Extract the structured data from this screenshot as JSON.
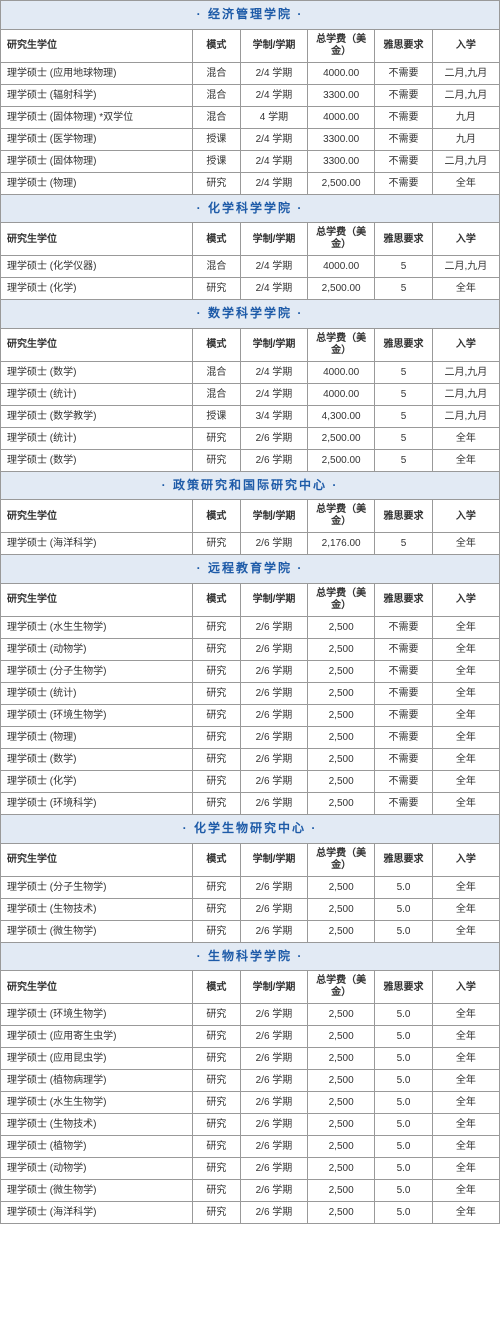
{
  "headers": {
    "degree": "研究生学位",
    "mode": "模式",
    "duration": "学制/学期",
    "fee": "总学费（美金）",
    "ielts": "雅思要求",
    "intake": "入学"
  },
  "sections": [
    {
      "title": "· 经济管理学院 ·",
      "rows": [
        {
          "degree": "理学硕士 (应用地球物理)",
          "mode": "混合",
          "duration": "2/4 学期",
          "fee": "4000.00",
          "ielts": "不需要",
          "intake": "二月,九月"
        },
        {
          "degree": "理学硕士 (辐射科学)",
          "mode": "混合",
          "duration": "2/4 学期",
          "fee": "3300.00",
          "ielts": "不需要",
          "intake": "二月,九月"
        },
        {
          "degree": "理学硕士 (固体物理) *双学位",
          "mode": "混合",
          "duration": "4 学期",
          "fee": "4000.00",
          "ielts": "不需要",
          "intake": "九月"
        },
        {
          "degree": "理学硕士 (医学物理)",
          "mode": "授课",
          "duration": "2/4 学期",
          "fee": "3300.00",
          "ielts": "不需要",
          "intake": "九月"
        },
        {
          "degree": "理学硕士 (固体物理)",
          "mode": "授课",
          "duration": "2/4 学期",
          "fee": "3300.00",
          "ielts": "不需要",
          "intake": "二月,九月"
        },
        {
          "degree": "理学硕士 (物理)",
          "mode": "研究",
          "duration": "2/4 学期",
          "fee": "2,500.00",
          "ielts": "不需要",
          "intake": "全年"
        }
      ]
    },
    {
      "title": "· 化学科学学院 ·",
      "rows": [
        {
          "degree": "理学硕士 (化学仪器)",
          "mode": "混合",
          "duration": "2/4 学期",
          "fee": "4000.00",
          "ielts": "5",
          "intake": "二月,九月"
        },
        {
          "degree": "理学硕士 (化学)",
          "mode": "研究",
          "duration": "2/4 学期",
          "fee": "2,500.00",
          "ielts": "5",
          "intake": "全年"
        }
      ]
    },
    {
      "title": "· 数学科学学院 ·",
      "rows": [
        {
          "degree": "理学硕士 (数学)",
          "mode": "混合",
          "duration": "2/4 学期",
          "fee": "4000.00",
          "ielts": "5",
          "intake": "二月,九月"
        },
        {
          "degree": "理学硕士 (统计)",
          "mode": "混合",
          "duration": "2/4 学期",
          "fee": "4000.00",
          "ielts": "5",
          "intake": "二月,九月"
        },
        {
          "degree": "理学硕士 (数学教学)",
          "mode": "授课",
          "duration": "3/4 学期",
          "fee": "4,300.00",
          "ielts": "5",
          "intake": "二月,九月"
        },
        {
          "degree": "理学硕士 (统计)",
          "mode": "研究",
          "duration": "2/6 学期",
          "fee": "2,500.00",
          "ielts": "5",
          "intake": "全年"
        },
        {
          "degree": "理学硕士 (数学)",
          "mode": "研究",
          "duration": "2/6 学期",
          "fee": "2,500.00",
          "ielts": "5",
          "intake": "全年"
        }
      ]
    },
    {
      "title": "· 政策研究和国际研究中心 ·",
      "rows": [
        {
          "degree": "理学硕士 (海洋科学)",
          "mode": "研究",
          "duration": "2/6 学期",
          "fee": "2,176.00",
          "ielts": "5",
          "intake": "全年"
        }
      ]
    },
    {
      "title": "· 远程教育学院 ·",
      "rows": [
        {
          "degree": "理学硕士 (水生生物学)",
          "mode": "研究",
          "duration": "2/6 学期",
          "fee": "2,500",
          "ielts": "不需要",
          "intake": "全年"
        },
        {
          "degree": "理学硕士 (动物学)",
          "mode": "研究",
          "duration": "2/6 学期",
          "fee": "2,500",
          "ielts": "不需要",
          "intake": "全年"
        },
        {
          "degree": "理学硕士 (分子生物学)",
          "mode": "研究",
          "duration": "2/6 学期",
          "fee": "2,500",
          "ielts": "不需要",
          "intake": "全年"
        },
        {
          "degree": "理学硕士 (统计)",
          "mode": "研究",
          "duration": "2/6 学期",
          "fee": "2,500",
          "ielts": "不需要",
          "intake": "全年"
        },
        {
          "degree": "理学硕士 (环境生物学)",
          "mode": "研究",
          "duration": "2/6 学期",
          "fee": "2,500",
          "ielts": "不需要",
          "intake": "全年"
        },
        {
          "degree": "理学硕士 (物理)",
          "mode": "研究",
          "duration": "2/6 学期",
          "fee": "2,500",
          "ielts": "不需要",
          "intake": "全年"
        },
        {
          "degree": "理学硕士 (数学)",
          "mode": "研究",
          "duration": "2/6 学期",
          "fee": "2,500",
          "ielts": "不需要",
          "intake": "全年"
        },
        {
          "degree": "理学硕士 (化学)",
          "mode": "研究",
          "duration": "2/6 学期",
          "fee": "2,500",
          "ielts": "不需要",
          "intake": "全年"
        },
        {
          "degree": "理学硕士 (环境科学)",
          "mode": "研究",
          "duration": "2/6 学期",
          "fee": "2,500",
          "ielts": "不需要",
          "intake": "全年"
        }
      ]
    },
    {
      "title": "· 化学生物研究中心 ·",
      "rows": [
        {
          "degree": "理学硕士 (分子生物学)",
          "mode": "研究",
          "duration": "2/6 学期",
          "fee": "2,500",
          "ielts": "5.0",
          "intake": "全年"
        },
        {
          "degree": "理学硕士 (生物技术)",
          "mode": "研究",
          "duration": "2/6 学期",
          "fee": "2,500",
          "ielts": "5.0",
          "intake": "全年"
        },
        {
          "degree": "理学硕士 (微生物学)",
          "mode": "研究",
          "duration": "2/6 学期",
          "fee": "2,500",
          "ielts": "5.0",
          "intake": "全年"
        }
      ]
    },
    {
      "title": "· 生物科学学院 ·",
      "rows": [
        {
          "degree": "理学硕士 (环境生物学)",
          "mode": "研究",
          "duration": "2/6 学期",
          "fee": "2,500",
          "ielts": "5.0",
          "intake": "全年"
        },
        {
          "degree": "理学硕士 (应用寄生虫学)",
          "mode": "研究",
          "duration": "2/6 学期",
          "fee": "2,500",
          "ielts": "5.0",
          "intake": "全年"
        },
        {
          "degree": "理学硕士 (应用昆虫学)",
          "mode": "研究",
          "duration": "2/6 学期",
          "fee": "2,500",
          "ielts": "5.0",
          "intake": "全年"
        },
        {
          "degree": "理学硕士 (植物病理学)",
          "mode": "研究",
          "duration": "2/6 学期",
          "fee": "2,500",
          "ielts": "5.0",
          "intake": "全年"
        },
        {
          "degree": "理学硕士 (水生生物学)",
          "mode": "研究",
          "duration": "2/6 学期",
          "fee": "2,500",
          "ielts": "5.0",
          "intake": "全年"
        },
        {
          "degree": "理学硕士 (生物技术)",
          "mode": "研究",
          "duration": "2/6 学期",
          "fee": "2,500",
          "ielts": "5.0",
          "intake": "全年"
        },
        {
          "degree": "理学硕士 (植物学)",
          "mode": "研究",
          "duration": "2/6 学期",
          "fee": "2,500",
          "ielts": "5.0",
          "intake": "全年"
        },
        {
          "degree": "理学硕士 (动物学)",
          "mode": "研究",
          "duration": "2/6 学期",
          "fee": "2,500",
          "ielts": "5.0",
          "intake": "全年"
        },
        {
          "degree": "理学硕士 (微生物学)",
          "mode": "研究",
          "duration": "2/6 学期",
          "fee": "2,500",
          "ielts": "5.0",
          "intake": "全年"
        },
        {
          "degree": "理学硕士 (海洋科学)",
          "mode": "研究",
          "duration": "2/6 学期",
          "fee": "2,500",
          "ielts": "5.0",
          "intake": "全年"
        }
      ]
    }
  ]
}
